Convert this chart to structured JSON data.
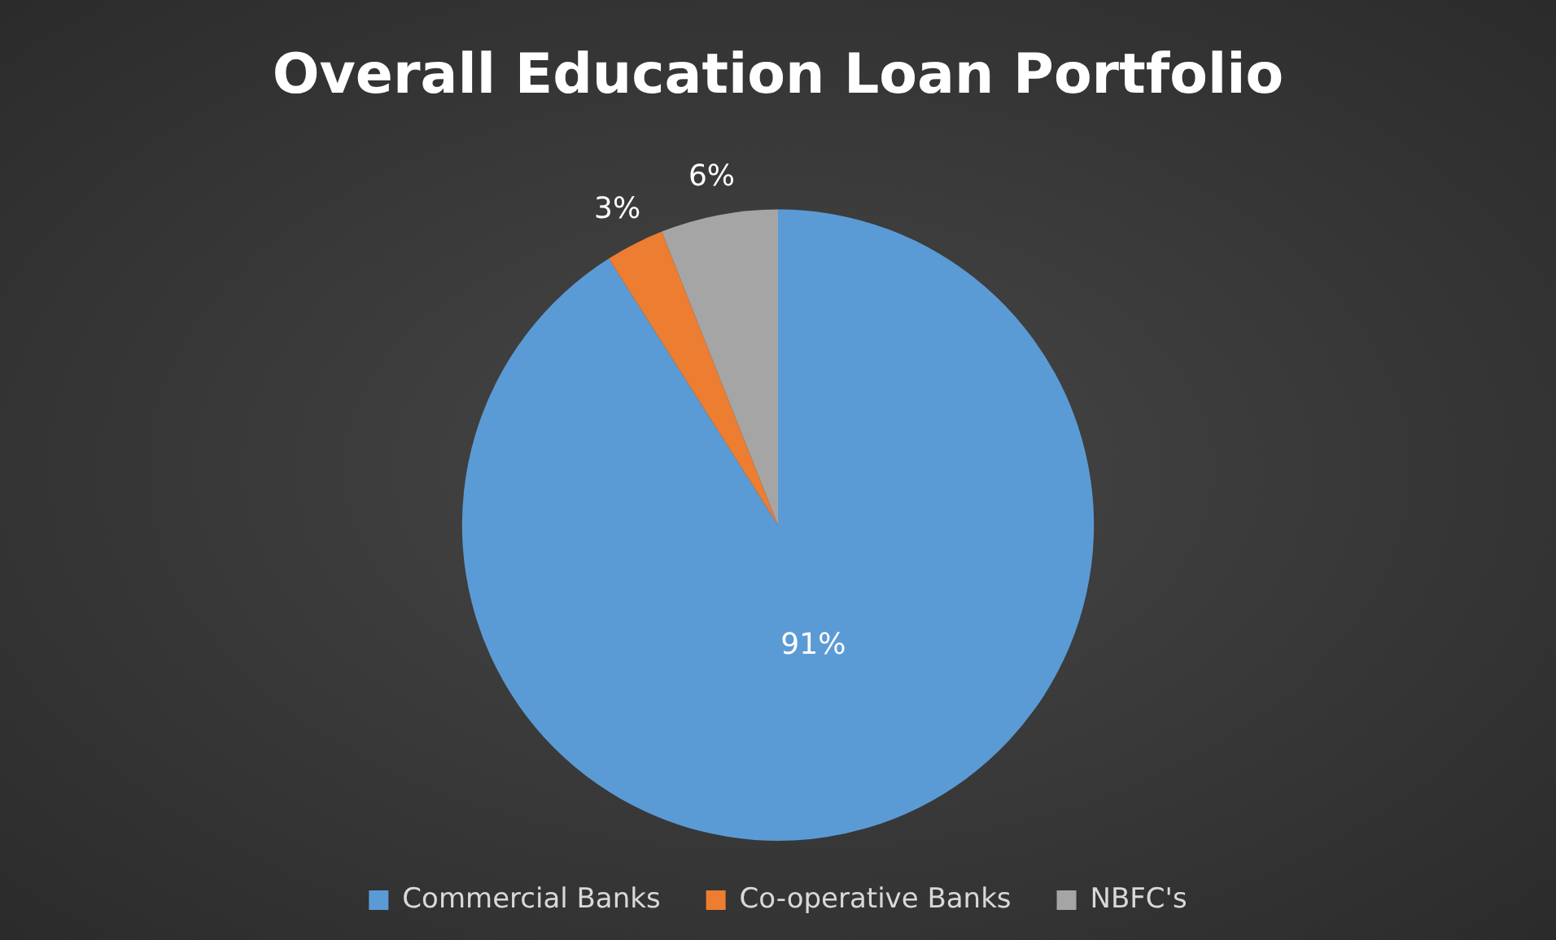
{
  "chart_data": {
    "type": "pie",
    "title": "Overall Education Loan Portfolio",
    "categories": [
      "Commercial Banks",
      "Co-operative Banks",
      "NBFC's"
    ],
    "values": [
      91,
      3,
      6
    ],
    "colors": [
      "#5b9bd5",
      "#ed7d31",
      "#a5a5a5"
    ],
    "value_labels": [
      "91%",
      "3%",
      "6%"
    ],
    "legend": "bottom"
  }
}
